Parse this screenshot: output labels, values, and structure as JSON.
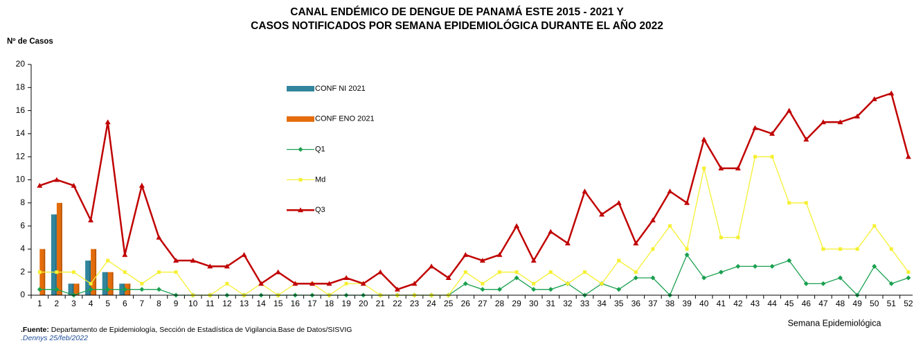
{
  "chart_data": {
    "type": "bar",
    "title_lines": [
      "CANAL ENDÉMICO DE DENGUE DE PANAMÁ ESTE 2015 - 2021 Y",
      "CASOS NOTIFICADOS POR SEMANA EPIDEMIOLÓGICA DURANTE EL AÑO 2022"
    ],
    "y_label": "Nº de Casos",
    "x_label": "Semana Epidemiológica",
    "categories": [
      "1",
      "2",
      "3",
      "4",
      "5",
      "6",
      "7",
      "8",
      "9",
      "10",
      "11",
      "12",
      "13",
      "14",
      "15",
      "16",
      "17",
      "18",
      "19",
      "20",
      "21",
      "22",
      "23",
      "24",
      "25",
      "26",
      "27",
      "28",
      "29",
      "30",
      "31",
      "32",
      "33",
      "34",
      "35",
      "36",
      "37",
      "38",
      "39",
      "40",
      "41",
      "42",
      "43",
      "44",
      "45",
      "46",
      "47",
      "48",
      "49",
      "50",
      "51",
      "52"
    ],
    "ylim": [
      0,
      20
    ],
    "yticks": [
      0,
      2,
      4,
      6,
      8,
      10,
      12,
      14,
      16,
      18,
      20
    ],
    "series": [
      {
        "name": "CONF NI 2021",
        "type": "bar",
        "color": "#31859c",
        "values": [
          0,
          7,
          1,
          3,
          2,
          1,
          0,
          0,
          0,
          0,
          0,
          0,
          0,
          0,
          0,
          0,
          0,
          0,
          0,
          0,
          0,
          0,
          0,
          0,
          0,
          0,
          0,
          0,
          0,
          0,
          0,
          0,
          0,
          0,
          0,
          0,
          0,
          0,
          0,
          0,
          0,
          0,
          0,
          0,
          0,
          0,
          0,
          0,
          0,
          0,
          0,
          0
        ]
      },
      {
        "name": "CONF ENO 2021",
        "type": "bar",
        "color": "#e46c0a",
        "values": [
          4,
          8,
          1,
          4,
          2,
          1,
          0,
          0,
          0,
          0,
          0,
          0,
          0,
          0,
          0,
          0,
          0,
          0,
          0,
          0,
          0,
          0,
          0,
          0,
          0,
          0,
          0,
          0,
          0,
          0,
          0,
          0,
          0,
          0,
          0,
          0,
          0,
          0,
          0,
          0,
          0,
          0,
          0,
          0,
          0,
          0,
          0,
          0,
          0,
          0,
          0,
          0
        ]
      },
      {
        "name": "Q1",
        "type": "line",
        "marker": "diamond",
        "color": "#1aa050",
        "values": [
          0.5,
          0.5,
          0,
          0.5,
          0.5,
          0.5,
          0.5,
          0.5,
          0,
          0,
          0,
          0,
          0,
          0,
          0,
          0,
          0,
          0,
          0,
          0,
          0,
          0,
          0,
          0,
          0,
          1,
          0.5,
          0.5,
          1.5,
          0.5,
          0.5,
          1,
          0,
          1,
          0.5,
          1.5,
          1.5,
          0,
          3.5,
          1.5,
          2,
          2.5,
          2.5,
          2.5,
          3,
          1,
          1,
          1.5,
          0,
          2.5,
          1,
          1.5
        ]
      },
      {
        "name": "Md",
        "type": "line",
        "marker": "square",
        "color": "#f5f032",
        "values": [
          2,
          2,
          2,
          1,
          3,
          2,
          1,
          2,
          2,
          0,
          0,
          1,
          0,
          1,
          0,
          1,
          1,
          0,
          1,
          1,
          0,
          0,
          0,
          0,
          0,
          2,
          1,
          2,
          2,
          1,
          2,
          1,
          2,
          1,
          3,
          2,
          4,
          6,
          4,
          11,
          5,
          5,
          12,
          12,
          8,
          8,
          4,
          4,
          4,
          6,
          4,
          2
        ]
      },
      {
        "name": "Q3",
        "type": "line",
        "marker": "triangle",
        "color": "#c00000",
        "values": [
          9.5,
          10,
          9.5,
          6.5,
          15,
          3.5,
          9.5,
          5,
          3,
          3,
          2.5,
          2.5,
          3.5,
          1,
          2,
          1,
          1,
          1,
          1.5,
          1,
          2,
          0.5,
          1,
          2.5,
          1.5,
          3.5,
          3,
          3.5,
          6,
          3,
          5.5,
          4.5,
          9,
          7,
          8,
          4.5,
          6.5,
          9,
          8,
          13.5,
          11,
          11,
          14.5,
          14,
          16,
          13.5,
          15,
          15,
          15.5,
          17,
          17.5,
          12
        ]
      }
    ],
    "source_label": ".Fuente:",
    "source_text": " Departamento de Epidemiología, Sección de Estadística de Vigilancia.Base de Datos/SISVIG",
    "credit": ".Dennys 25/feb/2022"
  }
}
